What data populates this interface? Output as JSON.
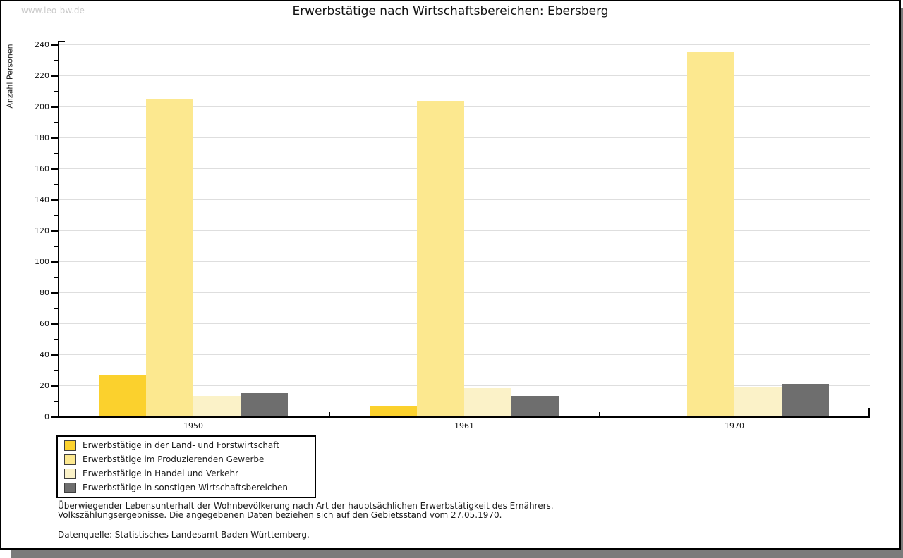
{
  "watermark": "www.leo-bw.de",
  "chart_data": {
    "type": "bar",
    "title": "Erwerbstätige nach Wirtschaftsbereichen: Ebersberg",
    "ylabel": "Anzahl Personen",
    "xlabel": "",
    "categories": [
      "1950",
      "1961",
      "1970"
    ],
    "series": [
      {
        "name": "Erwerbstätige in der Land- und Forstwirtschaft",
        "color": "#FBD12D",
        "values": [
          27,
          7,
          0
        ]
      },
      {
        "name": "Erwerbstätige im Produzierenden Gewerbe",
        "color": "#FCE88F",
        "values": [
          205,
          203,
          235
        ]
      },
      {
        "name": "Erwerbstätige in Handel und Verkehr",
        "color": "#FBF2C8",
        "values": [
          13,
          18,
          19
        ]
      },
      {
        "name": "Erwerbstätige in sonstigen Wirtschaftsbereichen",
        "color": "#6E6E6E",
        "values": [
          15,
          13,
          21
        ]
      }
    ],
    "ylim": [
      0,
      240
    ],
    "ytick_step": 20,
    "yminor_step": 10,
    "grid": true,
    "legend_position": "bottom-left"
  },
  "footnotes": {
    "line1": "Überwiegender Lebensunterhalt der Wohnbevölkerung nach Art der hauptsächlichen Erwerbstätigkeit des Ernährers.",
    "line2": "Volkszählungsergebnisse. Die angegebenen Daten beziehen sich auf den Gebietsstand vom 27.05.1970.",
    "source": "Datenquelle: Statistisches Landesamt Baden-Württemberg."
  },
  "colors": {
    "panel_border": "#000000",
    "shadow": "#7b7b7b",
    "gridline": "#dedede",
    "watermark": "#c9c9c9"
  }
}
